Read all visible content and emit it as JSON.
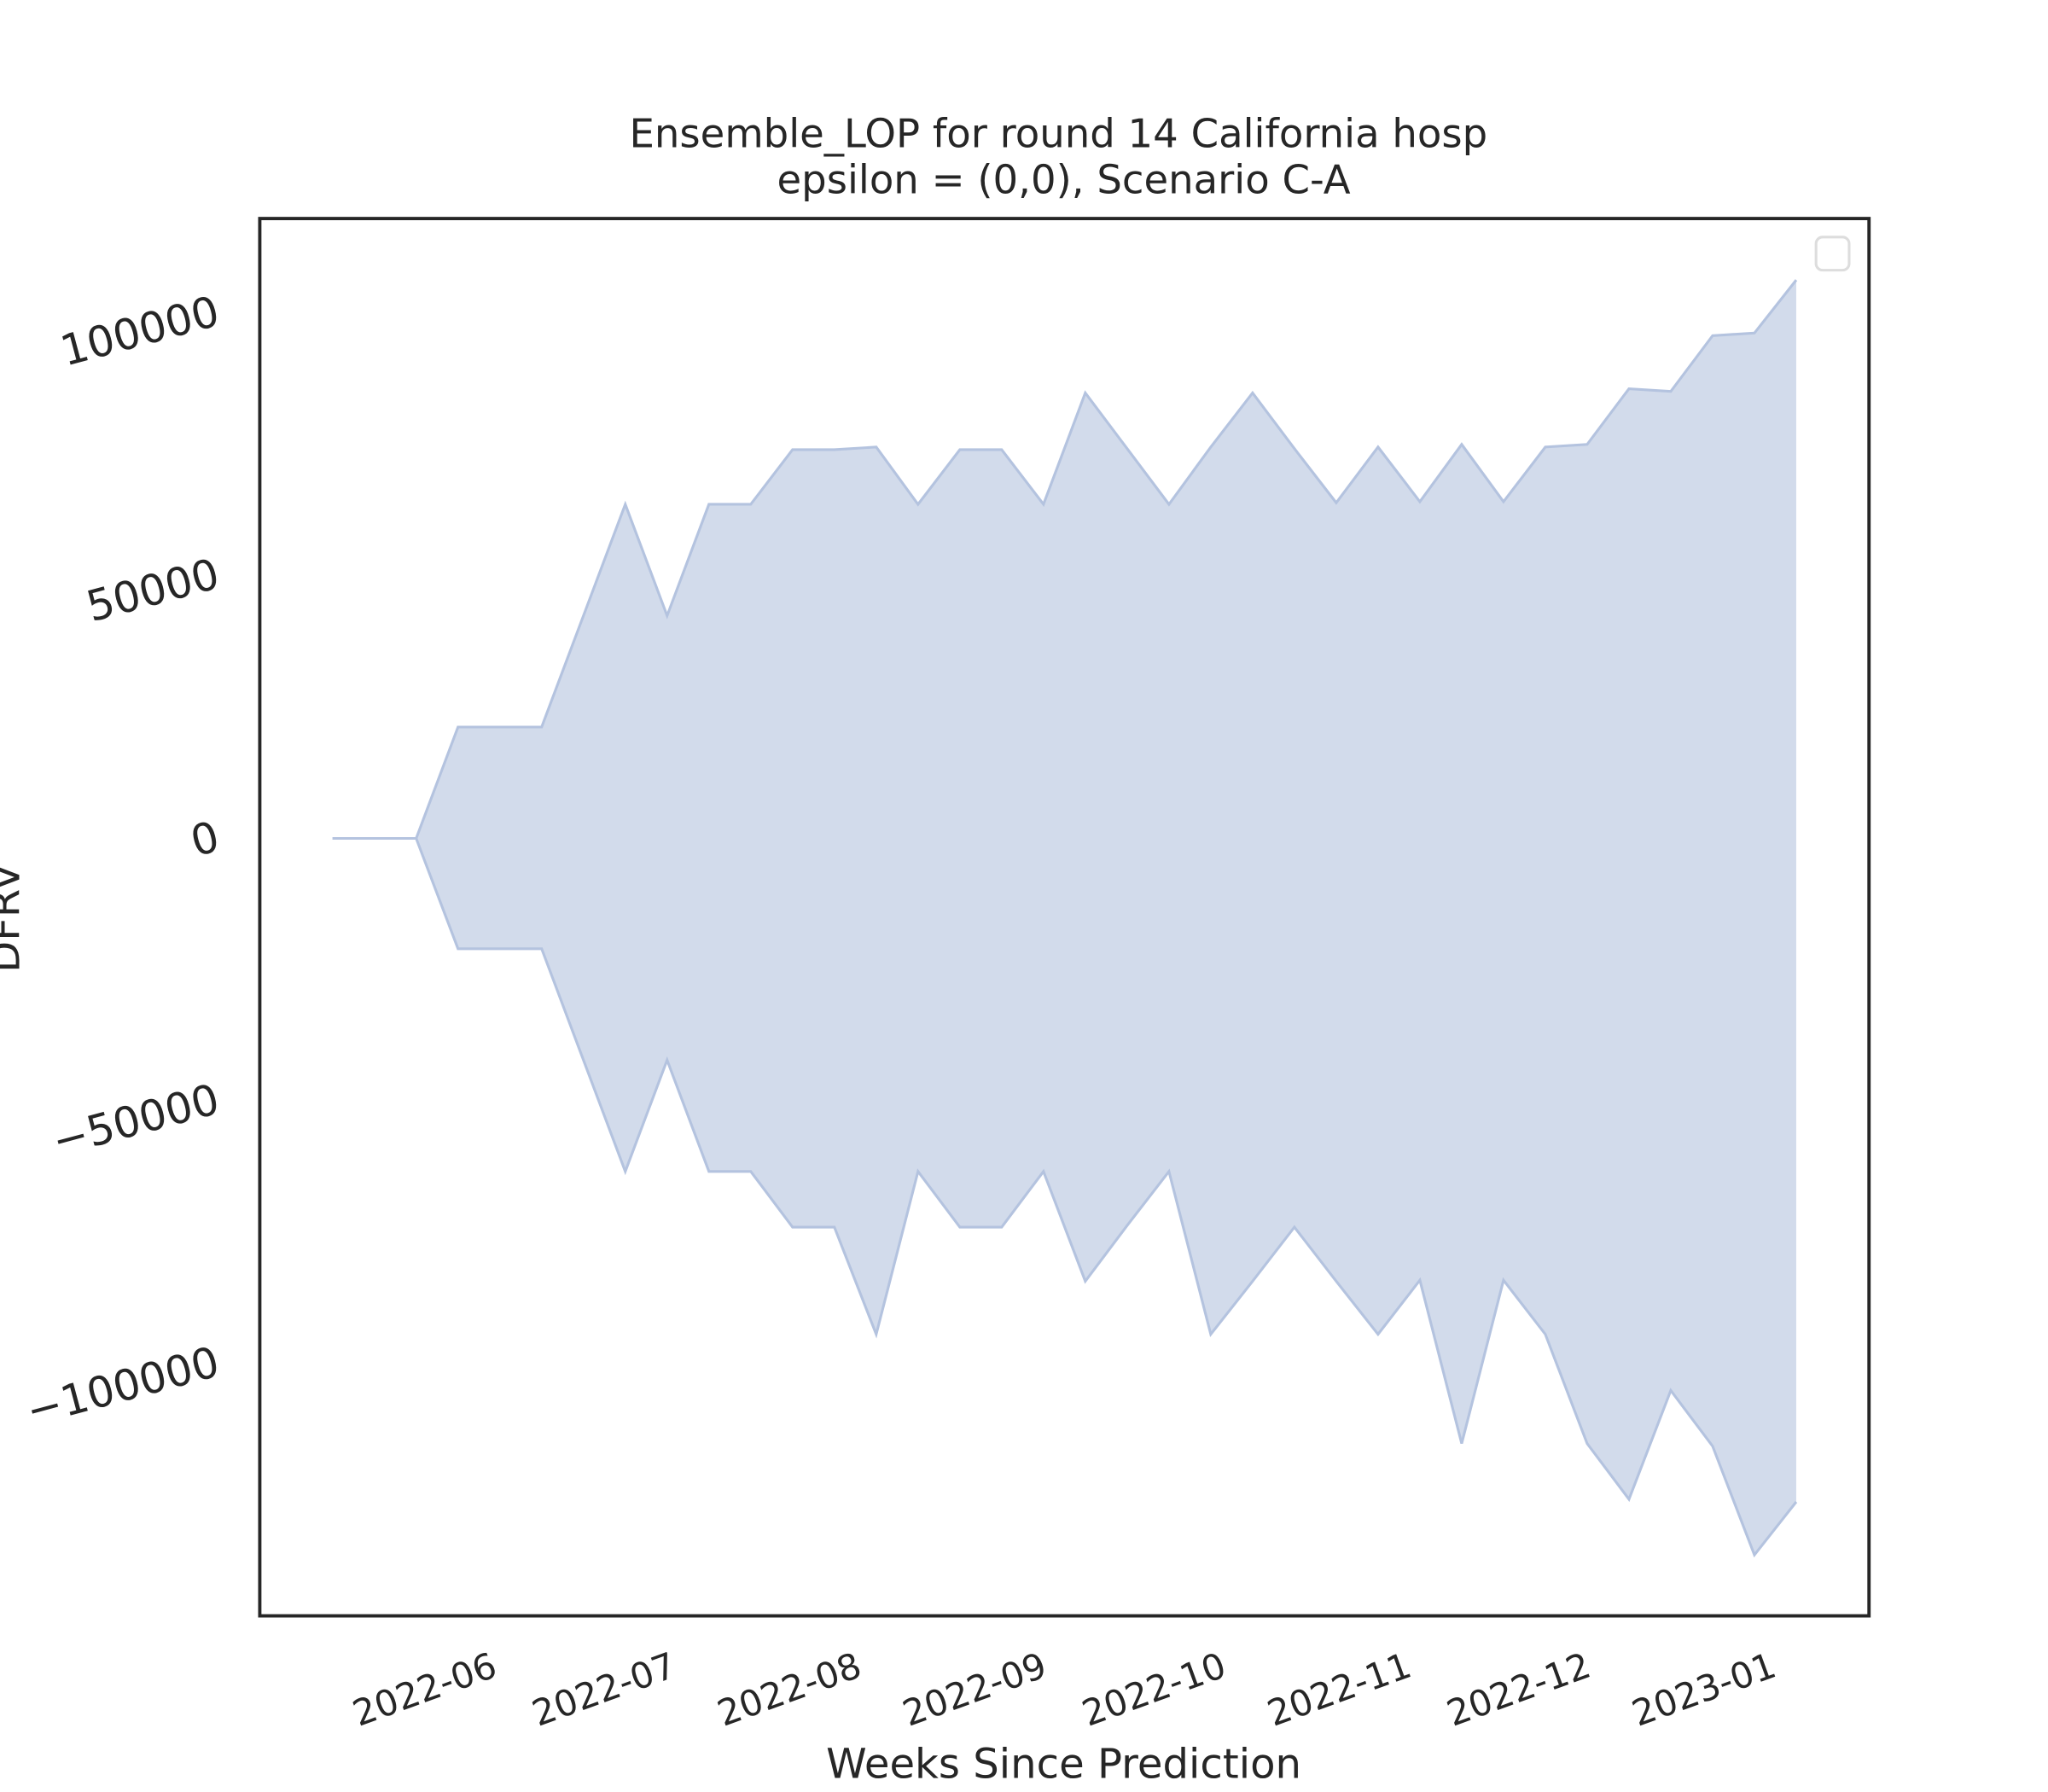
{
  "chart_data": {
    "type": "area",
    "title": "Ensemble_LOP for round 14 California hosp",
    "subtitle": "epsilon = (0,0), Scenario C-A",
    "x_label": "Weeks Since Prediction",
    "y_label": "DFRV",
    "x": [
      0,
      1,
      2,
      3,
      4,
      5,
      6,
      7,
      8,
      9,
      10,
      11,
      12,
      13,
      14,
      15,
      16,
      17,
      18,
      19,
      20,
      21,
      22,
      23,
      24,
      25,
      26,
      27,
      28,
      29,
      30,
      31,
      32,
      33,
      34,
      35
    ],
    "series": [
      {
        "color": "#d2dbeb",
        "values": [
          0,
          0,
          0,
          21200,
          21200,
          21200,
          42400,
          63600,
          42400,
          63600,
          63600,
          74000,
          74000,
          74500,
          63600,
          74000,
          74000,
          63600,
          84800,
          74200,
          63600,
          74500,
          84800,
          74200,
          63900,
          74500,
          64100,
          75000,
          64100,
          74500,
          75000,
          85600,
          85100,
          95700,
          96200,
          106300
        ]
      },
      {
        "color": "#d2dbeb",
        "values": [
          0,
          0,
          0,
          -21000,
          -21000,
          -21000,
          -42200,
          -63400,
          -42200,
          -63400,
          -63400,
          -74000,
          -74000,
          -94400,
          -63400,
          -74000,
          -74000,
          -63400,
          -84300,
          -73700,
          -63400,
          -94400,
          -84300,
          -74000,
          -84300,
          -94400,
          -84100,
          -115200,
          -84100,
          -94400,
          -115200,
          -125800,
          -105100,
          -115700,
          -136400,
          -126300
        ]
      }
    ],
    "xlim": [
      -1.74,
      36.74
    ],
    "ylim": [
      -148000,
      118000
    ],
    "xticks": [
      {
        "value": 3.9,
        "label": "2022-06"
      },
      {
        "value": 8.19,
        "label": "2022-07"
      },
      {
        "value": 12.62,
        "label": "2022-08"
      },
      {
        "value": 17.05,
        "label": "2022-09"
      },
      {
        "value": 21.34,
        "label": "2022-10"
      },
      {
        "value": 25.77,
        "label": "2022-11"
      },
      {
        "value": 30.06,
        "label": "2022-12"
      },
      {
        "value": 34.49,
        "label": "2023-01"
      }
    ],
    "yticks": [
      {
        "value": -100000,
        "label": "−100000"
      },
      {
        "value": -50000,
        "label": "−50000"
      },
      0,
      50000,
      100000
    ],
    "grid": false,
    "edge_color": "#b4c3df"
  }
}
